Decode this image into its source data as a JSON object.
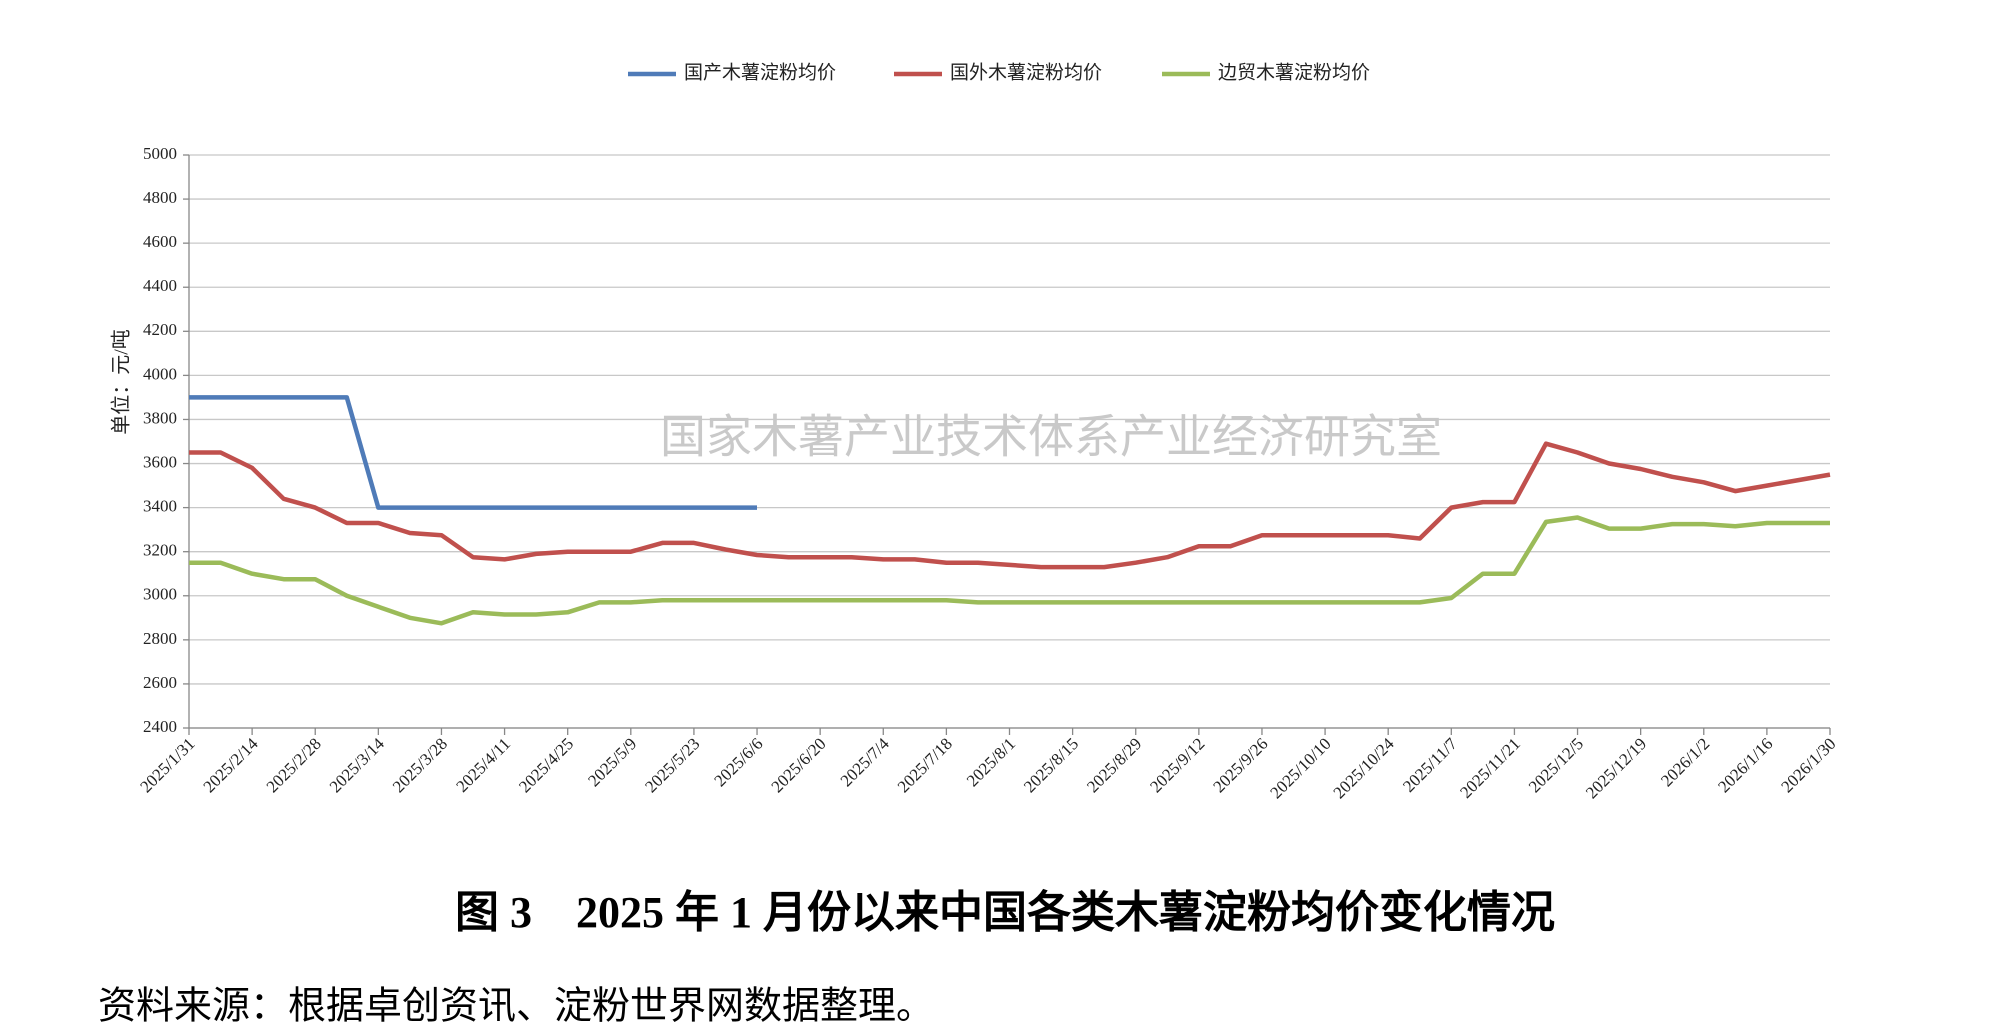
{
  "chart_data": {
    "type": "line",
    "y_label": "单位：元/吨",
    "watermark": "国家木薯产业技术体系产业经济研究室",
    "caption": "图 3　2025 年 1 月份以来中国各类木薯淀粉均价变化情况",
    "source": "资料来源：根据卓创资讯、淀粉世界网数据整理。",
    "legend": "top",
    "grid": true,
    "categories": [
      "2025/1/31",
      null,
      "2025/2/14",
      null,
      "2025/2/28",
      null,
      "2025/3/14",
      null,
      "2025/3/28",
      null,
      "2025/4/11",
      null,
      "2025/4/25",
      null,
      "2025/5/9",
      null,
      "2025/5/23",
      null,
      "2025/6/6",
      null,
      "2025/6/20",
      null,
      "2025/7/4",
      null,
      "2025/7/18",
      null,
      "2025/8/1",
      null,
      "2025/8/15",
      null,
      "2025/8/29",
      null,
      "2025/9/12",
      null,
      "2025/9/26",
      null,
      "2025/10/10",
      null,
      "2025/10/24",
      null,
      "2025/11/7",
      null,
      "2025/11/21",
      null,
      "2025/12/5",
      null,
      "2025/12/19",
      null,
      "2026/1/2",
      null,
      "2026/1/16",
      null,
      "2026/1/30"
    ],
    "series": [
      {
        "name": "国产木薯淀粉均价",
        "color": "#4f7bb8",
        "values": [
          3900,
          3900,
          3900,
          3900,
          3900,
          3900,
          3400,
          3400,
          3400,
          3400,
          3400,
          3400,
          3400,
          3400,
          3400,
          3400,
          3400,
          3400,
          3400,
          null,
          null,
          null,
          null,
          null,
          null,
          null,
          null,
          null,
          null,
          null,
          null,
          null,
          null,
          null,
          null,
          null,
          null,
          null,
          null,
          null,
          null,
          null,
          null,
          null,
          null,
          null,
          null,
          null,
          null,
          null,
          null,
          null,
          null
        ]
      },
      {
        "name": "国外木薯淀粉均价",
        "color": "#c0504d",
        "values": [
          3650,
          3650,
          3580,
          3440,
          3400,
          3330,
          3330,
          3285,
          3275,
          3175,
          3165,
          3190,
          3200,
          3200,
          3200,
          3240,
          3240,
          3210,
          3185,
          3175,
          3175,
          3175,
          3165,
          3165,
          3150,
          3150,
          3140,
          3130,
          3130,
          3130,
          3150,
          3175,
          3225,
          3225,
          3275,
          3275,
          3275,
          3275,
          3275,
          3260,
          3400,
          3425,
          3425,
          3690,
          3650,
          3600,
          3575,
          3540,
          3515,
          3475,
          3500,
          3525,
          3550
        ]
      },
      {
        "name": "边贸木薯淀粉均价",
        "color": "#9bbb59",
        "values": [
          3150,
          3150,
          3100,
          3075,
          3075,
          3000,
          2950,
          2900,
          2875,
          2925,
          2915,
          2915,
          2925,
          2970,
          2970,
          2980,
          2980,
          2980,
          2980,
          2980,
          2980,
          2980,
          2980,
          2980,
          2980,
          2970,
          2970,
          2970,
          2970,
          2970,
          2970,
          2970,
          2970,
          2970,
          2970,
          2970,
          2970,
          2970,
          2970,
          2970,
          2990,
          3100,
          3100,
          3335,
          3355,
          3305,
          3305,
          3325,
          3325,
          3315,
          3330,
          3330,
          3330
        ]
      }
    ],
    "ylim": [
      2400,
      5000
    ],
    "yticks": [
      2400,
      2600,
      2800,
      3000,
      3200,
      3400,
      3600,
      3800,
      4000,
      4200,
      4400,
      4600,
      4800,
      5000
    ]
  }
}
